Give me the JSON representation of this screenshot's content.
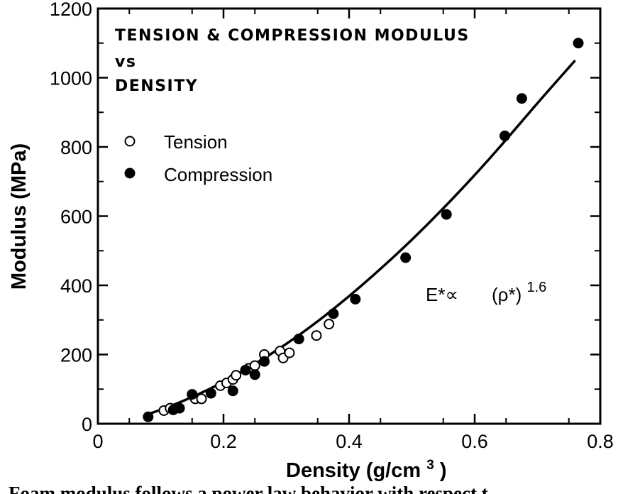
{
  "chart_data": {
    "type": "scatter",
    "title_lines": [
      "TENSION & COMPRESSION MODULUS",
      "vs",
      "DENSITY"
    ],
    "xlabel_main": "Density (g/cm",
    "xlabel_sup": "3",
    "xlabel_end": ")",
    "ylabel": "Modulus (MPa)",
    "xlim": [
      0,
      0.8
    ],
    "ylim": [
      0,
      1200
    ],
    "x_ticks": [
      0,
      0.2,
      0.4,
      0.6,
      0.8
    ],
    "x_tick_labels": [
      "0",
      "0.2",
      "0.4",
      "0.6",
      "0.8"
    ],
    "y_ticks": [
      0,
      200,
      400,
      600,
      800,
      1000,
      1200
    ],
    "y_tick_labels": [
      "0",
      "200",
      "400",
      "600",
      "800",
      "1000",
      "1200"
    ],
    "series": [
      {
        "name": "Tension",
        "marker": "open-circle",
        "points": [
          [
            0.105,
            38
          ],
          [
            0.115,
            45
          ],
          [
            0.155,
            72
          ],
          [
            0.165,
            72
          ],
          [
            0.195,
            110
          ],
          [
            0.205,
            118
          ],
          [
            0.215,
            128
          ],
          [
            0.22,
            140
          ],
          [
            0.24,
            160
          ],
          [
            0.25,
            168
          ],
          [
            0.265,
            200
          ],
          [
            0.29,
            210
          ],
          [
            0.295,
            190
          ],
          [
            0.305,
            205
          ],
          [
            0.348,
            255
          ],
          [
            0.368,
            288
          ]
        ]
      },
      {
        "name": "Compression",
        "marker": "filled-circle",
        "points": [
          [
            0.08,
            20
          ],
          [
            0.12,
            40
          ],
          [
            0.13,
            45
          ],
          [
            0.15,
            85
          ],
          [
            0.18,
            88
          ],
          [
            0.215,
            95
          ],
          [
            0.235,
            155
          ],
          [
            0.25,
            142
          ],
          [
            0.265,
            180
          ],
          [
            0.32,
            245
          ],
          [
            0.375,
            318
          ],
          [
            0.41,
            360
          ],
          [
            0.49,
            480
          ],
          [
            0.555,
            605
          ],
          [
            0.648,
            832
          ],
          [
            0.675,
            940
          ],
          [
            0.765,
            1100
          ]
        ]
      }
    ],
    "fit_curve": {
      "exponent": 1.6,
      "x_range": [
        0.075,
        0.76
      ],
      "points": [
        [
          0.075,
          25
        ],
        [
          0.1,
          40
        ],
        [
          0.15,
          76
        ],
        [
          0.2,
          120
        ],
        [
          0.25,
          172
        ],
        [
          0.3,
          230
        ],
        [
          0.35,
          295
        ],
        [
          0.4,
          368
        ],
        [
          0.45,
          447
        ],
        [
          0.5,
          531
        ],
        [
          0.55,
          622
        ],
        [
          0.6,
          718
        ],
        [
          0.65,
          820
        ],
        [
          0.7,
          927
        ],
        [
          0.76,
          1050
        ]
      ]
    },
    "annotation": {
      "lhs": "E*∝",
      "rhs": "(ρ*)",
      "exponent": "1.6"
    },
    "legend_position": "top-left",
    "grid": false
  },
  "caption": "Foam modulus follows a power law behavior with respect t"
}
